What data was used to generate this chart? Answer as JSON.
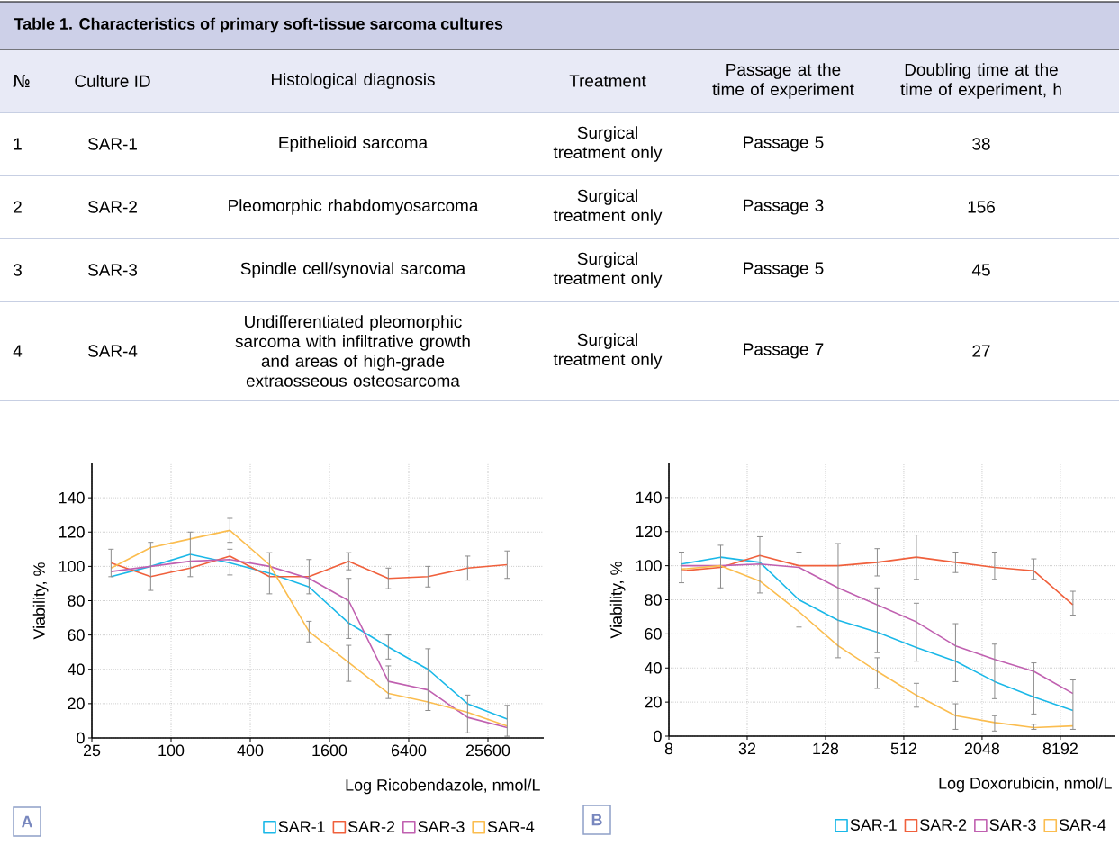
{
  "chart_data": [
    {
      "type": "other",
      "title": "Table 1. Characteristics of primary soft-tissue sarcoma cultures",
      "annotations": [
        "№",
        "Culture ID",
        "Histological diagnosis",
        "Treatment",
        "Passage at the time of experiment",
        "Doubling time at the time of experiment, h",
        "1",
        "SAR-1",
        "Epithelioid sarcoma",
        "Surgical treatment only",
        "Passage 5",
        "38",
        "2",
        "SAR-2",
        "Pleomorphic rhabdomyosarcoma",
        "Surgical treatment only",
        "Passage 3",
        "156",
        "3",
        "SAR-3",
        "Spindle cell/synovial sarcoma",
        "Surgical treatment only",
        "Passage 5",
        "45",
        "4",
        "SAR-4",
        "Undifferentiated pleomorphic sarcoma with infiltrative growth and areas of high-grade extraosseous osteosarcoma",
        "Surgical treatment only",
        "Passage 7",
        "27"
      ]
    },
    {
      "type": "line",
      "xlabel": "Log Ricobendazole, nmol/L",
      "ylabel": "Viability, %",
      "annotations": [
        "A"
      ],
      "x": [
        35,
        70,
        140,
        280,
        560,
        1120,
        2240,
        4480,
        8960,
        17920,
        35840
      ],
      "log": "x",
      "xlim": [
        25,
        68000
      ],
      "xticks": [
        25,
        100,
        400,
        1600,
        6400,
        25600
      ],
      "ylim": [
        0,
        160
      ],
      "yticks": [
        0,
        20,
        40,
        60,
        80,
        100,
        120,
        140
      ],
      "grid": true,
      "legend": "bottom",
      "marker": "none",
      "line_style": "solid",
      "series": [
        {
          "name": "SAR-1",
          "color": "#1ab8e8",
          "values": [
            94,
            100,
            107,
            102,
            96,
            88,
            67,
            53,
            40,
            20,
            11
          ],
          "errors": [
            null,
            14,
            13,
            null,
            12,
            null,
            null,
            [
              46,
              60
            ],
            [
              16,
              52
            ],
            null,
            [
              1,
              19
            ]
          ]
        },
        {
          "name": "SAR-2",
          "color": "#f0603c",
          "values": [
            102,
            94,
            99,
            106,
            94,
            94,
            103,
            93,
            94,
            99,
            101
          ],
          "errors": [
            8,
            null,
            null,
            [
              95,
              110
            ],
            null,
            10,
            5,
            6,
            6,
            7,
            8
          ]
        },
        {
          "name": "SAR-3",
          "color": "#c060b0",
          "values": [
            97,
            100,
            103,
            104,
            100,
            93,
            80,
            33,
            28,
            12,
            6
          ],
          "errors": [
            null,
            null,
            null,
            null,
            null,
            null,
            [
              58,
              93
            ],
            [
              23,
              42
            ],
            null,
            [
              3,
              25
            ],
            null
          ]
        },
        {
          "name": "SAR-4",
          "color": "#fbbd4f",
          "values": [
            99,
            111,
            116,
            121,
            101,
            62,
            44,
            26,
            21,
            15,
            7
          ],
          "errors": [
            null,
            null,
            null,
            7,
            null,
            6,
            [
              33,
              54
            ],
            null,
            null,
            null,
            null
          ]
        }
      ]
    },
    {
      "type": "line",
      "xlabel": "Log Doxorubicin, nmol/L",
      "ylabel": "Viability, %",
      "annotations": [
        "B"
      ],
      "x": [
        10,
        20,
        40,
        80,
        160,
        320,
        640,
        1280,
        2560,
        5120,
        10240
      ],
      "log": "x",
      "xlim": [
        8,
        21700
      ],
      "xticks": [
        8,
        32,
        128,
        512,
        2048,
        8192
      ],
      "ylim": [
        0,
        160
      ],
      "yticks": [
        0,
        20,
        40,
        60,
        80,
        100,
        120,
        140
      ],
      "grid": true,
      "legend": "bottom",
      "marker": "none",
      "line_style": "solid",
      "series": [
        {
          "name": "SAR-1",
          "color": "#1ab8e8",
          "values": [
            101,
            105,
            102,
            80,
            68,
            61,
            52,
            44,
            32,
            23,
            15
          ],
          "errors": [
            null,
            null,
            null,
            null,
            null,
            null,
            null,
            null,
            [
              22,
              54
            ],
            [
              13,
              43
            ],
            null
          ]
        },
        {
          "name": "SAR-2",
          "color": "#f0603c",
          "values": [
            97,
            99,
            106,
            100,
            100,
            102,
            105,
            102,
            99,
            97,
            77
          ],
          "errors": [
            [
              90,
              108
            ],
            null,
            [
              84,
              117
            ],
            null,
            null,
            [
              94,
              110
            ],
            [
              92,
              118
            ],
            [
              96,
              108
            ],
            [
              92,
              108
            ],
            [
              92,
              104
            ],
            [
              71,
              85
            ]
          ]
        },
        {
          "name": "SAR-3",
          "color": "#c060b0",
          "values": [
            100,
            100,
            101,
            99,
            87,
            77,
            67,
            53,
            45,
            38,
            25
          ],
          "errors": [
            null,
            null,
            null,
            [
              64,
              108
            ],
            [
              46,
              113
            ],
            [
              49,
              87
            ],
            [
              44,
              78
            ],
            [
              32,
              66
            ],
            null,
            null,
            [
              4,
              33
            ]
          ]
        },
        {
          "name": "SAR-4",
          "color": "#fbbd4f",
          "values": [
            98,
            100,
            91,
            73,
            53,
            38,
            24,
            12,
            8,
            5,
            6
          ],
          "errors": [
            null,
            [
              87,
              112
            ],
            null,
            null,
            null,
            [
              28,
              46
            ],
            [
              17,
              31
            ],
            [
              4,
              19
            ],
            [
              3,
              12
            ],
            [
              4,
              7
            ],
            null
          ]
        }
      ]
    }
  ]
}
